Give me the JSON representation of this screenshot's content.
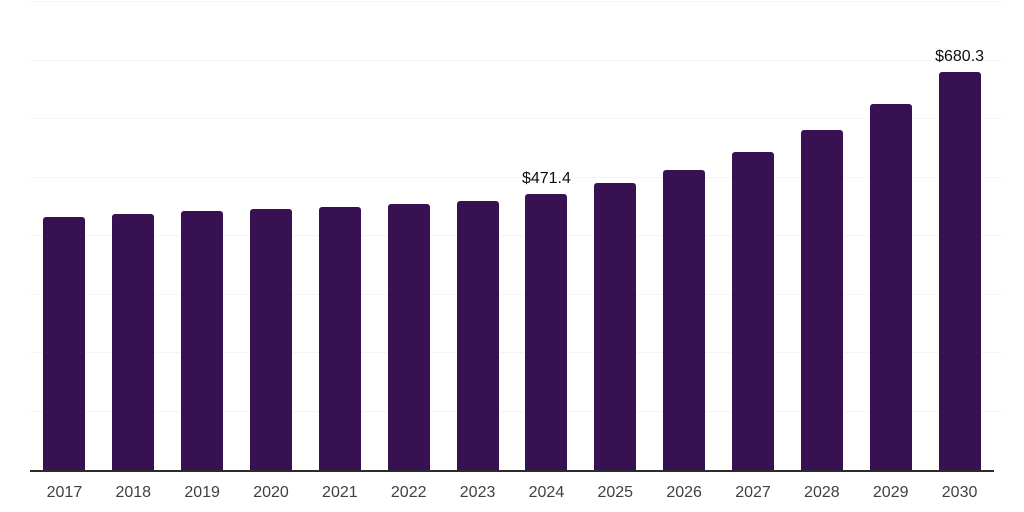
{
  "chart_data": {
    "type": "bar",
    "title": "",
    "xlabel": "",
    "ylabel": "",
    "categories": [
      "2017",
      "2018",
      "2019",
      "2020",
      "2021",
      "2022",
      "2023",
      "2024",
      "2025",
      "2026",
      "2027",
      "2028",
      "2029",
      "2030"
    ],
    "values": [
      433.0,
      437.6,
      442.2,
      446.7,
      449.6,
      454.2,
      459.8,
      471.4,
      490.6,
      513.4,
      543.0,
      580.6,
      626.1,
      680.3
    ],
    "annotations": [
      {
        "category": "2024",
        "label": "$471.4"
      },
      {
        "category": "2030",
        "label": "$680.3"
      }
    ],
    "ylim": [
      0,
      800
    ],
    "gridline_step": 100,
    "grid": true,
    "legend": false,
    "y_tick_labels_visible": false,
    "colors": {
      "bar": "#371152",
      "gridline": "#f5f5f5",
      "axis_line": "#2b2b2b",
      "tick_label": "#404040",
      "data_label": "#0d0d0d",
      "background": "#ffffff"
    }
  }
}
